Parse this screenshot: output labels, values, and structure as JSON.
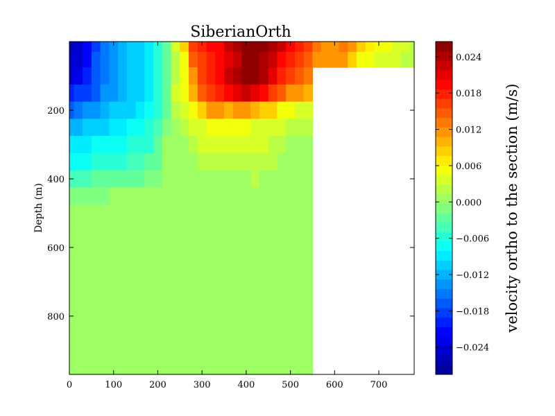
{
  "chart_data": {
    "type": "heatmap",
    "title": "SiberianOrth",
    "xlabel": "",
    "ylabel": "Depth (m)",
    "xlim": [
      0,
      780
    ],
    "ylim": [
      970,
      0
    ],
    "x_ticks": [
      0,
      100,
      200,
      300,
      400,
      500,
      600,
      700
    ],
    "y_ticks": [
      200,
      400,
      600,
      800
    ],
    "colorbar": {
      "label": "velocity ortho to the section (m/s)",
      "range": [
        -0.0285,
        0.0265
      ],
      "ticks": [
        -0.024,
        -0.018,
        -0.012,
        -0.006,
        0.0,
        0.006,
        0.012,
        0.018,
        0.024
      ],
      "tick_labels": [
        "−0.024",
        "−0.018",
        "−0.012",
        "−0.006",
        "0.000",
        "0.006",
        "0.012",
        "0.018",
        "0.024"
      ]
    },
    "x": [
      0,
      20,
      40,
      60,
      80,
      100,
      120,
      140,
      160,
      180,
      200,
      220,
      240,
      260,
      280,
      300,
      320,
      340,
      360,
      380,
      400,
      420,
      440,
      460,
      480,
      500,
      520,
      540,
      560,
      580,
      600,
      620,
      640,
      660,
      680,
      700,
      720,
      740,
      760,
      780
    ],
    "depths": [
      10,
      50,
      100,
      150,
      200,
      250,
      300,
      350,
      400,
      450,
      500,
      550,
      600,
      700,
      800,
      900,
      970
    ],
    "values": [
      [
        -0.026,
        -0.025,
        -0.022,
        -0.018,
        -0.015,
        -0.013,
        -0.012,
        -0.011,
        -0.01,
        -0.009,
        -0.006,
        -0.002,
        0.003,
        0.008,
        0.016,
        0.018,
        0.019,
        0.02,
        0.022,
        0.024,
        0.025,
        0.025,
        0.025,
        0.024,
        0.022,
        0.02,
        0.018,
        0.016,
        0.013,
        0.011,
        0.012,
        0.013,
        0.011,
        0.008,
        0.007,
        0.006,
        0.005,
        0.004,
        0.003,
        0.002
      ],
      [
        -0.025,
        -0.024,
        -0.021,
        -0.017,
        -0.015,
        -0.013,
        -0.012,
        -0.011,
        -0.01,
        -0.009,
        -0.006,
        -0.002,
        0.002,
        0.006,
        0.014,
        0.017,
        0.018,
        0.019,
        0.021,
        0.023,
        0.025,
        0.025,
        0.024,
        0.022,
        0.02,
        0.018,
        0.016,
        0.014,
        0.012,
        0.011,
        0.011,
        0.011,
        0.008,
        0.006,
        0.005,
        0.004,
        0.003,
        0.003,
        0.002,
        0.002
      ],
      [
        -0.024,
        -0.023,
        -0.02,
        -0.017,
        -0.015,
        -0.013,
        -0.012,
        -0.011,
        -0.01,
        -0.009,
        -0.006,
        -0.002,
        0.002,
        0.005,
        0.012,
        0.016,
        0.018,
        0.02,
        0.022,
        0.024,
        0.025,
        0.025,
        0.024,
        0.021,
        0.018,
        0.016,
        0.015,
        0.013,
        null,
        null,
        null,
        null,
        null,
        null,
        null,
        null,
        null,
        null,
        null,
        null
      ],
      [
        -0.02,
        -0.019,
        -0.018,
        -0.016,
        -0.014,
        -0.013,
        -0.012,
        -0.011,
        -0.01,
        -0.009,
        -0.006,
        -0.002,
        0.004,
        0.006,
        0.01,
        0.014,
        0.016,
        0.018,
        0.019,
        0.021,
        0.022,
        0.021,
        0.019,
        0.017,
        0.014,
        0.012,
        0.011,
        0.01,
        null,
        null,
        null,
        null,
        null,
        null,
        null,
        null,
        null,
        null,
        null,
        null
      ],
      [
        -0.016,
        -0.015,
        -0.014,
        -0.013,
        -0.012,
        -0.011,
        -0.01,
        -0.01,
        -0.009,
        -0.008,
        -0.006,
        -0.002,
        0.002,
        0.004,
        0.006,
        0.009,
        0.011,
        0.012,
        0.01,
        0.011,
        0.011,
        0.01,
        0.009,
        0.008,
        0.006,
        0.005,
        0.004,
        0.004,
        null,
        null,
        null,
        null,
        null,
        null,
        null,
        null,
        null,
        null,
        null,
        null
      ],
      [
        -0.012,
        -0.012,
        -0.011,
        -0.011,
        -0.01,
        -0.009,
        -0.009,
        -0.008,
        -0.007,
        -0.006,
        -0.004,
        -0.001,
        0.001,
        0.002,
        0.003,
        0.004,
        0.005,
        0.006,
        0.005,
        0.005,
        0.005,
        0.004,
        0.004,
        0.003,
        0.003,
        0.002,
        0.002,
        0.002,
        null,
        null,
        null,
        null,
        null,
        null,
        null,
        null,
        null,
        null,
        null,
        null
      ],
      [
        -0.009,
        -0.009,
        -0.009,
        -0.008,
        -0.008,
        -0.007,
        -0.007,
        -0.006,
        -0.005,
        -0.005,
        -0.003,
        0.0,
        0.001,
        0.001,
        0.002,
        0.003,
        0.003,
        0.004,
        0.004,
        0.003,
        0.003,
        0.003,
        0.003,
        0.002,
        0.002,
        0.001,
        0.001,
        0.001,
        null,
        null,
        null,
        null,
        null,
        null,
        null,
        null,
        null,
        null,
        null,
        null
      ],
      [
        -0.007,
        -0.007,
        -0.007,
        -0.006,
        -0.006,
        -0.005,
        -0.005,
        -0.004,
        -0.004,
        -0.003,
        -0.002,
        0.0,
        0.001,
        0.001,
        0.001,
        0.002,
        0.002,
        0.002,
        0.002,
        0.002,
        0.002,
        0.002,
        0.002,
        0.002,
        0.001,
        0.001,
        0.001,
        0.001,
        null,
        null,
        null,
        null,
        null,
        null,
        null,
        null,
        null,
        null,
        null,
        null
      ],
      [
        -0.004,
        -0.004,
        -0.004,
        -0.003,
        -0.003,
        -0.003,
        -0.002,
        -0.002,
        -0.002,
        -0.001,
        -0.001,
        0.0,
        0.0,
        0.001,
        0.001,
        0.001,
        0.001,
        0.001,
        0.001,
        0.001,
        0.001,
        0.002,
        0.001,
        0.001,
        0.001,
        0.0,
        0.0,
        0.0,
        null,
        null,
        null,
        null,
        null,
        null,
        null,
        null,
        null,
        null,
        null,
        null
      ],
      [
        -0.001,
        -0.001,
        -0.001,
        -0.001,
        -0.001,
        0.0,
        0.0,
        0.0,
        0.0,
        0.0,
        0.0,
        0.0,
        0.0,
        0.001,
        0.001,
        0.0,
        0.0,
        0.0,
        0.0,
        0.0,
        0.001,
        0.001,
        0.001,
        0.001,
        0.0,
        0.0,
        0.0,
        0.0,
        null,
        null,
        null,
        null,
        null,
        null,
        null,
        null,
        null,
        null,
        null,
        null
      ],
      [
        0.0,
        0.0,
        0.0,
        0.0,
        0.0,
        0.0,
        0.0,
        0.0,
        0.0,
        0.0,
        0.0,
        0.0,
        0.001,
        0.001,
        0.001,
        0.0,
        0.0,
        0.0,
        0.0,
        0.0,
        0.0,
        0.0,
        0.0,
        0.0,
        0.0,
        0.0,
        0.0,
        0.0,
        null,
        null,
        null,
        null,
        null,
        null,
        null,
        null,
        null,
        null,
        null,
        null
      ],
      [
        0.0,
        0.0,
        0.0,
        0.0,
        0.0,
        0.0,
        0.0,
        0.0,
        0.0,
        0.0,
        0.0,
        0.0,
        0.001,
        0.001,
        0.001,
        0.0,
        0.0,
        0.0,
        0.0,
        0.0,
        0.0,
        0.0,
        0.0,
        0.0,
        0.0,
        0.0,
        0.0,
        0.0,
        null,
        null,
        null,
        null,
        null,
        null,
        null,
        null,
        null,
        null,
        null,
        null
      ],
      [
        0.0,
        0.0,
        0.0,
        0.0,
        0.0,
        0.0,
        0.0,
        0.0,
        0.0,
        0.0,
        0.0,
        0.0,
        0.001,
        0.001,
        0.001,
        0.0,
        0.0,
        0.0,
        0.0,
        0.0,
        0.0,
        0.0,
        0.0,
        0.0,
        0.0,
        0.0,
        0.0,
        0.0,
        null,
        null,
        null,
        null,
        null,
        null,
        null,
        null,
        null,
        null,
        null,
        null
      ],
      [
        0.0,
        0.0,
        0.0,
        0.0,
        0.0,
        0.0,
        0.0,
        0.0,
        0.0,
        0.0,
        0.0,
        0.0,
        0.001,
        0.001,
        0.0,
        0.0,
        0.0,
        0.0,
        0.0,
        0.0,
        0.0,
        0.0,
        0.0,
        0.0,
        0.0,
        0.0,
        0.0,
        0.0,
        null,
        null,
        null,
        null,
        null,
        null,
        null,
        null,
        null,
        null,
        null,
        null
      ],
      [
        0.0,
        0.0,
        0.0,
        0.0,
        0.0,
        0.0,
        0.0,
        0.0,
        0.0,
        0.0,
        0.0,
        0.0,
        0.001,
        0.001,
        0.0,
        0.0,
        0.0,
        0.0,
        0.0,
        0.0,
        0.0,
        0.0,
        0.0,
        0.0,
        0.0,
        0.0,
        0.0,
        0.0,
        null,
        null,
        null,
        null,
        null,
        null,
        null,
        null,
        null,
        null,
        null,
        null
      ],
      [
        0.0,
        0.001,
        0.0,
        0.0,
        0.0,
        0.0,
        0.0,
        0.0,
        0.0,
        0.0,
        0.0,
        0.0,
        0.001,
        0.001,
        0.0,
        0.0,
        0.0,
        0.0,
        0.0,
        0.0,
        0.0,
        0.0,
        0.0,
        0.0,
        0.0,
        0.0,
        0.0,
        0.0,
        null,
        null,
        null,
        null,
        null,
        null,
        null,
        null,
        null,
        null,
        null,
        null
      ],
      [
        0.001,
        0.001,
        0.0,
        0.0,
        0.0,
        0.0,
        0.0,
        0.0,
        0.0,
        0.0,
        0.0,
        0.0,
        0.001,
        0.001,
        0.0,
        0.0,
        0.0,
        0.0,
        0.0,
        0.0,
        0.0,
        0.0,
        0.0,
        0.0,
        0.0,
        0.0,
        0.0,
        0.0,
        null,
        null,
        null,
        null,
        null,
        null,
        null,
        null,
        null,
        null,
        null,
        null
      ]
    ]
  }
}
